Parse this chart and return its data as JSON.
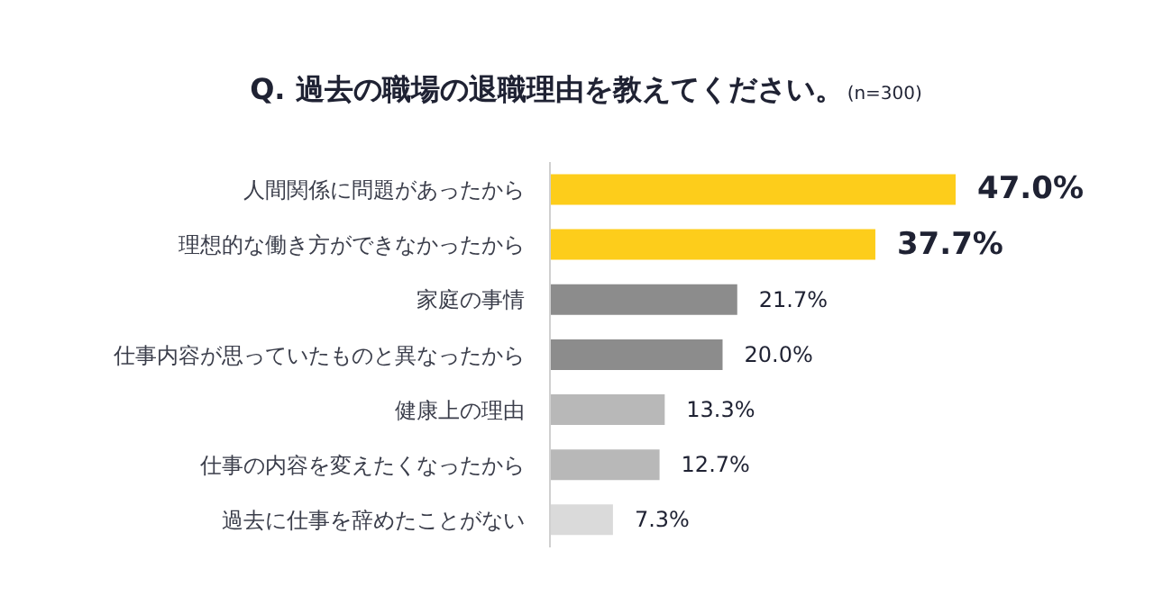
{
  "chart_data": {
    "type": "bar",
    "orientation": "horizontal",
    "title": "Q. 過去の職場の退職理由を教えてください。",
    "subtitle": "(n=300)",
    "categories": [
      "人間関係に問題があったから",
      "理想的な働き方ができなかったから",
      "家庭の事情",
      "仕事内容が思っていたものと異なったから",
      "健康上の理由",
      "仕事の内容を変えたくなったから",
      "過去に仕事を辞めたことがない"
    ],
    "values": [
      47.0,
      37.7,
      21.7,
      20.0,
      13.3,
      12.7,
      7.3
    ],
    "colors": [
      "#fdcd1b",
      "#fdcd1b",
      "#8c8c8c",
      "#8c8c8c",
      "#b8b8b8",
      "#b8b8b8",
      "#dadada"
    ],
    "value_labels": [
      "47.0%",
      "37.7%",
      "21.7%",
      "20.0%",
      "13.3%",
      "12.7%",
      "7.3%"
    ],
    "grid": false,
    "legend": false
  }
}
